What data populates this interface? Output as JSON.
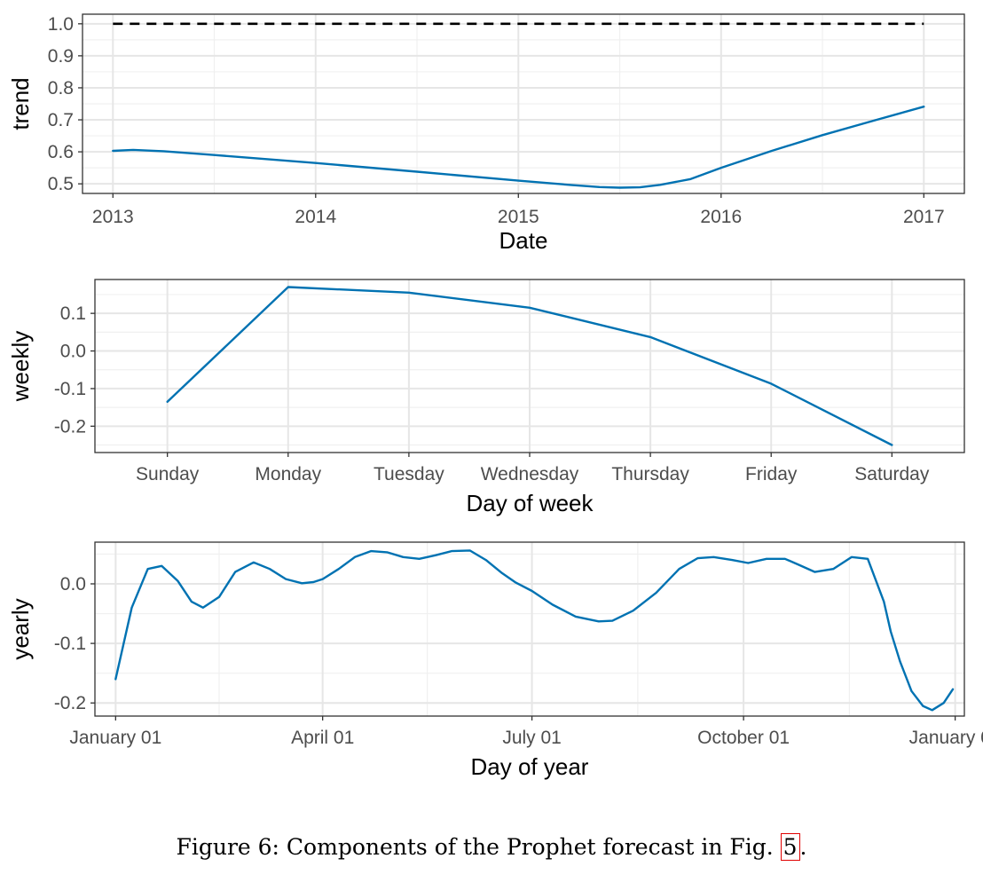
{
  "chart_data": [
    {
      "type": "line",
      "panel": "trend",
      "ylabel": "trend",
      "xlabel": "Date",
      "ylim": [
        0.47,
        1.03
      ],
      "yticks": [
        0.5,
        0.6,
        0.7,
        0.8,
        0.9,
        1.0
      ],
      "ytick_labels": [
        "0.5",
        "0.6",
        "0.7",
        "0.8",
        "0.9",
        "1.0"
      ],
      "xlim": [
        2012.85,
        2017.2
      ],
      "xticks": [
        2013,
        2014,
        2015,
        2016,
        2017
      ],
      "xtick_labels": [
        "2013",
        "2014",
        "2015",
        "2016",
        "2017"
      ],
      "series": [
        {
          "name": "trend",
          "color": "#0072B2",
          "x": [
            2013.0,
            2013.1,
            2013.25,
            2013.5,
            2014.0,
            2014.5,
            2015.0,
            2015.25,
            2015.4,
            2015.5,
            2015.6,
            2015.7,
            2015.85,
            2016.0,
            2016.25,
            2016.5,
            2016.75,
            2017.0
          ],
          "y": [
            0.603,
            0.606,
            0.602,
            0.59,
            0.565,
            0.538,
            0.51,
            0.497,
            0.49,
            0.488,
            0.489,
            0.497,
            0.515,
            0.55,
            0.603,
            0.652,
            0.697,
            0.741
          ]
        },
        {
          "name": "cap",
          "color": "#000000",
          "style": "dashed",
          "x": [
            2013.0,
            2017.0
          ],
          "y": [
            1.0,
            1.0
          ]
        }
      ]
    },
    {
      "type": "line",
      "panel": "weekly",
      "ylabel": "weekly",
      "xlabel": "Day of week",
      "categories": [
        "Sunday",
        "Monday",
        "Tuesday",
        "Wednesday",
        "Thursday",
        "Friday",
        "Saturday"
      ],
      "ylim": [
        -0.27,
        0.19
      ],
      "yticks": [
        -0.2,
        -0.1,
        0.0,
        0.1
      ],
      "ytick_labels": [
        "-0.2",
        "-0.1",
        "0.0",
        "0.1"
      ],
      "series": [
        {
          "name": "weekly",
          "color": "#0072B2",
          "values": [
            -0.135,
            0.17,
            0.155,
            0.115,
            0.037,
            -0.087,
            -0.25
          ]
        }
      ]
    },
    {
      "type": "line",
      "panel": "yearly",
      "ylabel": "yearly",
      "xlabel": "Day of year",
      "xlim": [
        -9,
        369
      ],
      "xticks": [
        0,
        90,
        181,
        273,
        365
      ],
      "xtick_labels": [
        "January 01",
        "April 01",
        "July 01",
        "October 01",
        "January 01"
      ],
      "ylim": [
        -0.222,
        0.07
      ],
      "yticks": [
        -0.2,
        -0.1,
        0.0
      ],
      "ytick_labels": [
        "-0.2",
        "-0.1",
        "0.0"
      ],
      "series": [
        {
          "name": "yearly",
          "color": "#0072B2",
          "x": [
            0,
            7,
            14,
            20,
            27,
            33,
            38,
            45,
            52,
            60,
            67,
            74,
            81,
            86,
            90,
            97,
            104,
            111,
            118,
            125,
            132,
            139,
            146,
            154,
            161,
            168,
            174,
            181,
            190,
            200,
            210,
            216,
            225,
            235,
            245,
            253,
            260,
            268,
            275,
            283,
            291,
            297,
            304,
            312,
            320,
            327,
            334,
            337,
            341,
            346,
            351,
            355,
            360,
            364
          ],
          "y": [
            -0.16,
            -0.04,
            0.025,
            0.03,
            0.005,
            -0.03,
            -0.04,
            -0.022,
            0.02,
            0.036,
            0.025,
            0.008,
            0.001,
            0.003,
            0.008,
            0.025,
            0.045,
            0.055,
            0.053,
            0.045,
            0.042,
            0.048,
            0.055,
            0.056,
            0.04,
            0.018,
            0.002,
            -0.012,
            -0.035,
            -0.055,
            -0.063,
            -0.062,
            -0.045,
            -0.015,
            0.025,
            0.043,
            0.045,
            0.04,
            0.035,
            0.042,
            0.042,
            0.032,
            0.02,
            0.025,
            0.045,
            0.042,
            -0.03,
            -0.08,
            -0.13,
            -0.18,
            -0.205,
            -0.212,
            -0.2,
            -0.177
          ]
        }
      ]
    }
  ],
  "caption": {
    "text": "Figure 6: Components of the Prophet forecast in Fig. ",
    "ref": "5",
    "end": "."
  }
}
